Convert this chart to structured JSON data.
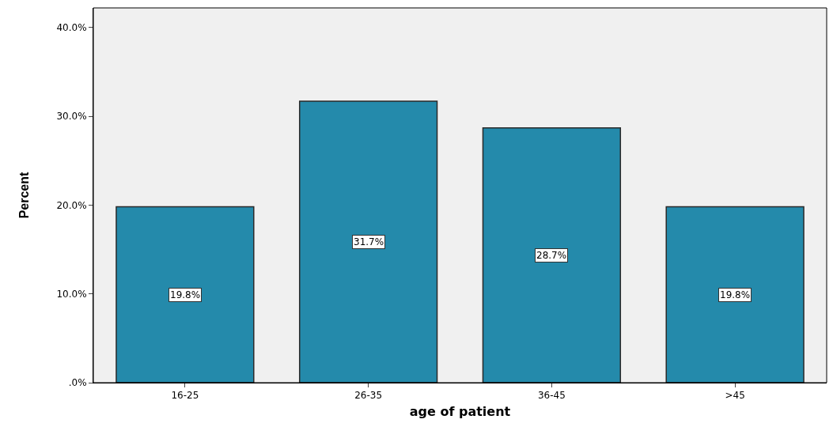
{
  "chart_data": {
    "type": "bar",
    "xlabel": "age of patient",
    "ylabel": "Percent",
    "categories": [
      "16-25",
      "26-35",
      "36-45",
      ">45"
    ],
    "values": [
      19.8,
      31.7,
      28.7,
      19.8
    ],
    "value_labels": [
      "19.8%",
      "31.7%",
      "28.7%",
      "19.8%"
    ],
    "color": "#248aab",
    "ylim": [
      0,
      42.2
    ],
    "yticks": [
      {
        "value": 0,
        "label": ".0%"
      },
      {
        "value": 10,
        "label": "10.0%"
      },
      {
        "value": 20,
        "label": "20.0%"
      },
      {
        "value": 30,
        "label": "30.0%"
      },
      {
        "value": 40,
        "label": "40.0%"
      }
    ],
    "grid": false
  }
}
